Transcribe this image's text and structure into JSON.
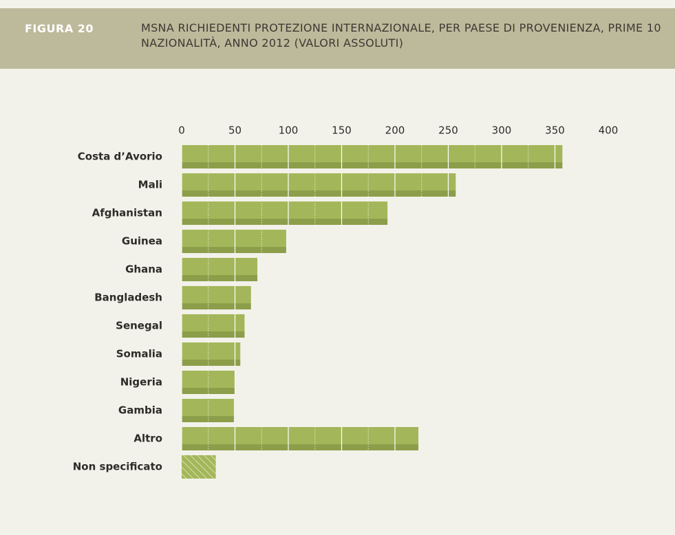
{
  "figure_label": "FIGURA 20",
  "chart_data": {
    "type": "barh",
    "title": "MSNA RICHIEDENTI PROTEZIONE INTERNAZIONALE, PER PAESE DI PROVENIENZA, PRIME 10 NAZIONALITÀ, ANNO 2012 (VALORI ASSOLUTI)",
    "categories": [
      "Costa d’Avorio",
      "Mali",
      "Afghanistan",
      "Guinea",
      "Ghana",
      "Bangladesh",
      "Senegal",
      "Somalia",
      "Nigeria",
      "Gambia",
      "Altro",
      "Non specificato"
    ],
    "values": [
      357,
      257,
      193,
      98,
      71,
      65,
      59,
      55,
      50,
      49,
      222,
      32
    ],
    "bar_styles": [
      "solid",
      "solid",
      "solid",
      "solid",
      "solid",
      "solid",
      "solid",
      "solid",
      "solid",
      "solid",
      "solid",
      "hatched"
    ],
    "color": "#a3b75a",
    "xlim": [
      0,
      400
    ],
    "xticks": [
      0,
      50,
      100,
      150,
      200,
      250,
      300,
      350,
      400
    ],
    "minor_xticks": [
      25,
      75,
      125,
      175,
      225,
      275,
      325,
      375
    ],
    "grid": true
  }
}
